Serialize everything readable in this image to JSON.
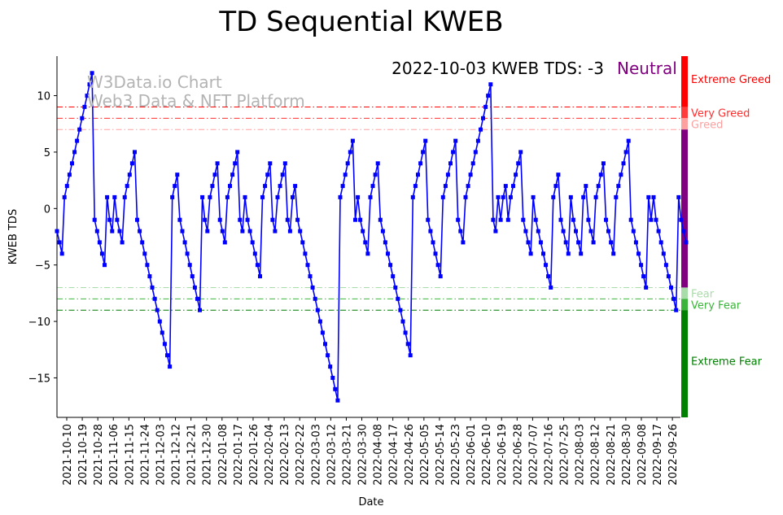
{
  "chart_data": {
    "type": "line",
    "title": "TD Sequential KWEB",
    "xlabel": "Date",
    "ylabel": "KWEB TDS",
    "ylim": [
      -18.5,
      13.5
    ],
    "yticks": [
      10,
      5,
      0,
      -5,
      -10,
      -15
    ],
    "ytick_labels": [
      "10",
      "5",
      "0",
      "−5",
      "−10",
      "−15"
    ],
    "xtick_labels": [
      "2021-10-10",
      "2021-10-19",
      "2021-10-28",
      "2021-11-06",
      "2021-11-15",
      "2021-11-24",
      "2021-12-03",
      "2021-12-12",
      "2021-12-21",
      "2021-12-30",
      "2022-01-08",
      "2022-01-17",
      "2022-01-26",
      "2022-02-04",
      "2022-02-13",
      "2022-02-22",
      "2022-03-03",
      "2022-03-12",
      "2022-03-21",
      "2022-03-30",
      "2022-04-08",
      "2022-04-17",
      "2022-04-26",
      "2022-05-05",
      "2022-05-14",
      "2022-05-23",
      "2022-06-01",
      "2022-06-10",
      "2022-06-19",
      "2022-06-28",
      "2022-07-07",
      "2022-07-16",
      "2022-07-25",
      "2022-08-03",
      "2022-08-12",
      "2022-08-21",
      "2022-08-30",
      "2022-09-08",
      "2022-09-17",
      "2022-09-26"
    ],
    "annotation_main": "2022-10-03 KWEB TDS: -3",
    "annotation_status": "Neutral",
    "annotation_status_color": "#800080",
    "watermark_line1": "W3Data.io Chart",
    "watermark_line2": "Web3 Data & NFT Platform",
    "series_color": "#0000ff",
    "marker": "square",
    "thresholds": [
      {
        "label": "Very Greed",
        "value": 8,
        "color": "#ff3030"
      },
      {
        "label": "Greed",
        "value": 7,
        "color": "#ffa0a0"
      },
      {
        "label": "Extreme Greed",
        "value": 9,
        "color": "#ff0000"
      },
      {
        "label": "Fear",
        "value": -7,
        "color": "#a8dca8"
      },
      {
        "label": "Very Fear",
        "value": -8,
        "color": "#3cb43c"
      },
      {
        "label": "Extreme Fear",
        "value": -9,
        "color": "#007800"
      }
    ],
    "zone_labels": [
      {
        "label": "Extreme Greed",
        "value": 11.5,
        "color": "#ff0000"
      },
      {
        "label": "Very Greed",
        "value": 8.5,
        "color": "#ff3030"
      },
      {
        "label": "Greed",
        "value": 7.5,
        "color": "#ffa0a0"
      },
      {
        "label": "Fear",
        "value": -7.5,
        "color": "#a8dca8"
      },
      {
        "label": "Very Fear",
        "value": -8.5,
        "color": "#3cb43c"
      },
      {
        "label": "Extreme Fear",
        "value": -13.5,
        "color": "#008000"
      }
    ],
    "sidebar_zones": [
      {
        "from": 9,
        "to": 13.5,
        "color": "#ff0000"
      },
      {
        "from": 8,
        "to": 9,
        "color": "#ff3c3c"
      },
      {
        "from": 7,
        "to": 8,
        "color": "#ffa0a0"
      },
      {
        "from": -7,
        "to": 7,
        "color": "#800080"
      },
      {
        "from": -8,
        "to": -7,
        "color": "#a8dca8"
      },
      {
        "from": -9,
        "to": -8,
        "color": "#3cb43c"
      },
      {
        "from": -18.5,
        "to": -9,
        "color": "#008000"
      }
    ],
    "values": [
      -2,
      -3,
      -4,
      1,
      2,
      3,
      4,
      5,
      6,
      7,
      8,
      9,
      10,
      11,
      12,
      -1,
      -2,
      -3,
      -4,
      -5,
      1,
      -1,
      -2,
      1,
      -1,
      -2,
      -3,
      1,
      2,
      3,
      4,
      5,
      -1,
      -2,
      -3,
      -4,
      -5,
      -6,
      -7,
      -8,
      -9,
      -10,
      -11,
      -12,
      -13,
      -14,
      1,
      2,
      3,
      -1,
      -2,
      -3,
      -4,
      -5,
      -6,
      -7,
      -8,
      -9,
      1,
      -1,
      -2,
      1,
      2,
      3,
      4,
      -1,
      -2,
      -3,
      1,
      2,
      3,
      4,
      5,
      -1,
      -2,
      1,
      -1,
      -2,
      -3,
      -4,
      -5,
      -6,
      1,
      2,
      3,
      4,
      -1,
      -2,
      1,
      2,
      3,
      4,
      -1,
      -2,
      1,
      2,
      -1,
      -2,
      -3,
      -4,
      -5,
      -6,
      -7,
      -8,
      -9,
      -10,
      -11,
      -12,
      -13,
      -14,
      -15,
      -16,
      -17,
      1,
      2,
      3,
      4,
      5,
      6,
      -1,
      1,
      -1,
      -2,
      -3,
      -4,
      1,
      2,
      3,
      4,
      -1,
      -2,
      -3,
      -4,
      -5,
      -6,
      -7,
      -8,
      -9,
      -10,
      -11,
      -12,
      -13,
      1,
      2,
      3,
      4,
      5,
      6,
      -1,
      -2,
      -3,
      -4,
      -5,
      -6,
      1,
      2,
      3,
      4,
      5,
      6,
      -1,
      -2,
      -3,
      1,
      2,
      3,
      4,
      5,
      6,
      7,
      8,
      9,
      10,
      11,
      -1,
      -2,
      1,
      -1,
      1,
      2,
      -1,
      1,
      2,
      3,
      4,
      5,
      -1,
      -2,
      -3,
      -4,
      1,
      -1,
      -2,
      -3,
      -4,
      -5,
      -6,
      -7,
      1,
      2,
      3,
      -1,
      -2,
      -3,
      -4,
      1,
      -1,
      -2,
      -3,
      -4,
      1,
      2,
      -1,
      -2,
      -3,
      1,
      2,
      3,
      4,
      -1,
      -2,
      -3,
      -4,
      1,
      2,
      3,
      4,
      5,
      6,
      -1,
      -2,
      -3,
      -4,
      -5,
      -6,
      -7,
      1,
      -1,
      1,
      -1,
      -2,
      -3,
      -4,
      -5,
      -6,
      -7,
      -8,
      -9,
      1,
      -1,
      -2,
      -3
    ]
  }
}
